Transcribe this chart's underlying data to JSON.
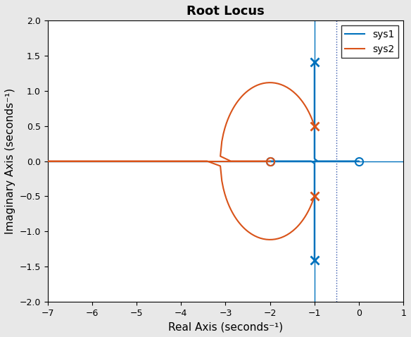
{
  "title": "Root Locus",
  "xlabel": "Real Axis (seconds⁻¹)",
  "ylabel": "Imaginary Axis (seconds⁻¹)",
  "xlim": [
    -7,
    1
  ],
  "ylim": [
    -2,
    2
  ],
  "xticks": [
    -7,
    -6,
    -5,
    -4,
    -3,
    -2,
    -1,
    0,
    1
  ],
  "yticks": [
    -2.0,
    -1.5,
    -1.0,
    -0.5,
    0.0,
    0.5,
    1.0,
    1.5,
    2.0
  ],
  "bg_color": "#e8e8e8",
  "plot_bg_color": "#ffffff",
  "sys1_color": "#0072BD",
  "sys2_color": "#D95319",
  "dotted_line_x": -0.5,
  "sys1_pole_re": -1.0,
  "sys1_pole_im": 1.4142135623730951,
  "sys1_zero1": -2.0,
  "sys1_zero2": 0.0,
  "sys2_pole": -2.0,
  "sys2_zero_re": -1.0,
  "sys2_zero_im": 0.5,
  "legend_labels": [
    "sys1",
    "sys2"
  ],
  "title_fontsize": 13,
  "label_fontsize": 11,
  "tick_fontsize": 9
}
